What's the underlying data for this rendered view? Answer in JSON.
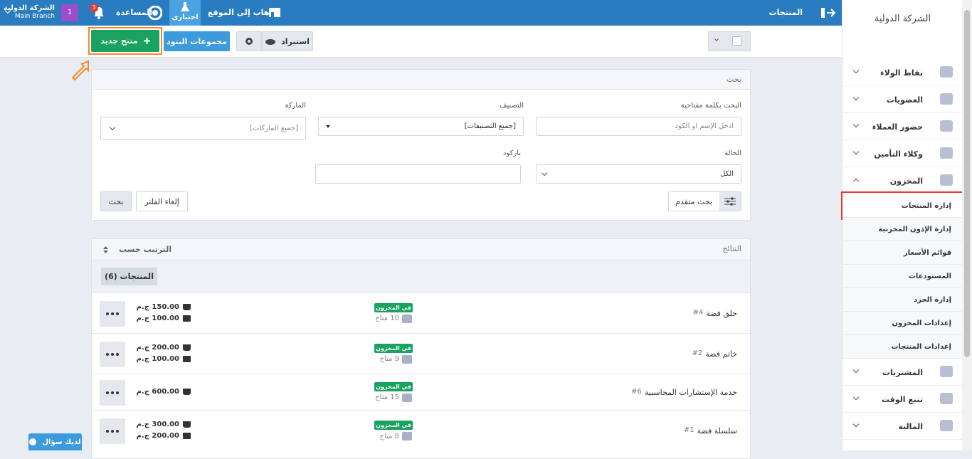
{
  "topbar": {
    "page_title": "المنتجات",
    "go_to_site": "الذهاب إلى الموقع",
    "test_mode": "اختباري",
    "help": "المساعدة",
    "notifications": "3",
    "branch_badge": "1",
    "company": "الشركة الدولية",
    "branch": "Main Branch"
  },
  "sidebar": {
    "company": "الشركة الدولية",
    "menu_top": [
      "نقاط الولاء",
      "العضويات",
      "حضور العملاء",
      "وكلاء التأمين",
      "المخزون"
    ],
    "submenu": [
      "إدارة المنتجات",
      "إدارة الإذون المخزنية",
      "قوائم الأسعار",
      "المستودعات",
      "إدارة الجرد",
      "إعدادات المخزون",
      "إعدادات المنتجات"
    ],
    "menu_bottom": [
      "المشتريات",
      "تتبع الوقت",
      "المالية"
    ]
  },
  "toolbar": {
    "new_product": "منتج جديد",
    "item_groups": "مجموعات البنود",
    "import": "استيراد"
  },
  "search": {
    "title": "بحث",
    "keyword_label": "البحث بكلمة مفتاحية",
    "keyword_placeholder": "ادخل الإسم او الكود",
    "category_label": "التصنيف",
    "category_value": "[جميع التصنيفات]",
    "brand_label": "الماركة",
    "brand_value": "[جميع الماركات]",
    "status_label": "الحالة",
    "status_value": "الكل",
    "barcode_label": "باركود",
    "advanced": "بحث متقدم",
    "clear": "إلغاء الفلتر",
    "submit": "بحث"
  },
  "results": {
    "title": "النتائج",
    "sort": "الترتيب حسب",
    "tab": "المنتجات (6)",
    "products": [
      {
        "name": "حلق فضة",
        "code": "#4",
        "status": "في المخزون",
        "available": "10 متاح",
        "prices": [
          "150.00 ج.م",
          "100.00 ج.م"
        ]
      },
      {
        "name": "خاتم فضة",
        "code": "#2",
        "status": "في المخزون",
        "available": "9 متاح",
        "prices": [
          "200.00 ج.م",
          "100.00 ج.م"
        ]
      },
      {
        "name": "خدمة الإستشارات المحاسبية",
        "code": "#6",
        "status": "في المخزون",
        "available": "15 متاح",
        "prices": [
          "600.00 ج.م"
        ]
      },
      {
        "name": "سلسلة فضة",
        "code": "#1",
        "status": "في المخزون",
        "available": "8 متاح",
        "prices": [
          "300.00 ج.م",
          "200.00 ج.م"
        ]
      }
    ]
  },
  "help_button": "لديك سؤال"
}
